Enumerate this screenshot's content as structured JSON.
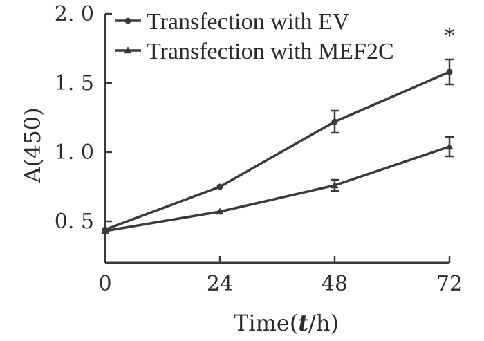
{
  "chart_data": {
    "type": "line",
    "xlabel_prefix": "Time(",
    "xlabel_var": "t",
    "xlabel_suffix": "/h)",
    "ylabel": "A(450)",
    "x": [
      0,
      24,
      48,
      72
    ],
    "x_tick_labels": [
      "0",
      "24",
      "48",
      "72"
    ],
    "y_ticks": [
      0.5,
      1.0,
      1.5,
      2.0
    ],
    "y_tick_labels": [
      "0. 5",
      "1. 0",
      "1. 5",
      "2. 0"
    ],
    "xlim": [
      0,
      72
    ],
    "ylim": [
      0.2,
      2.0
    ],
    "grid": false,
    "legend_position": "top-left",
    "series": [
      {
        "name": "Transfection with EV",
        "marker": "circle",
        "values": [
          0.44,
          0.75,
          1.22,
          1.58
        ],
        "errors": [
          0.02,
          0.02,
          0.08,
          0.09
        ]
      },
      {
        "name": "Transfection with MEF2C",
        "marker": "triangle",
        "values": [
          0.43,
          0.57,
          0.76,
          1.04
        ],
        "errors": [
          0.02,
          0.02,
          0.04,
          0.07
        ]
      }
    ],
    "annotations": [
      {
        "text": "*",
        "x": 72,
        "series_index": 0
      }
    ]
  }
}
